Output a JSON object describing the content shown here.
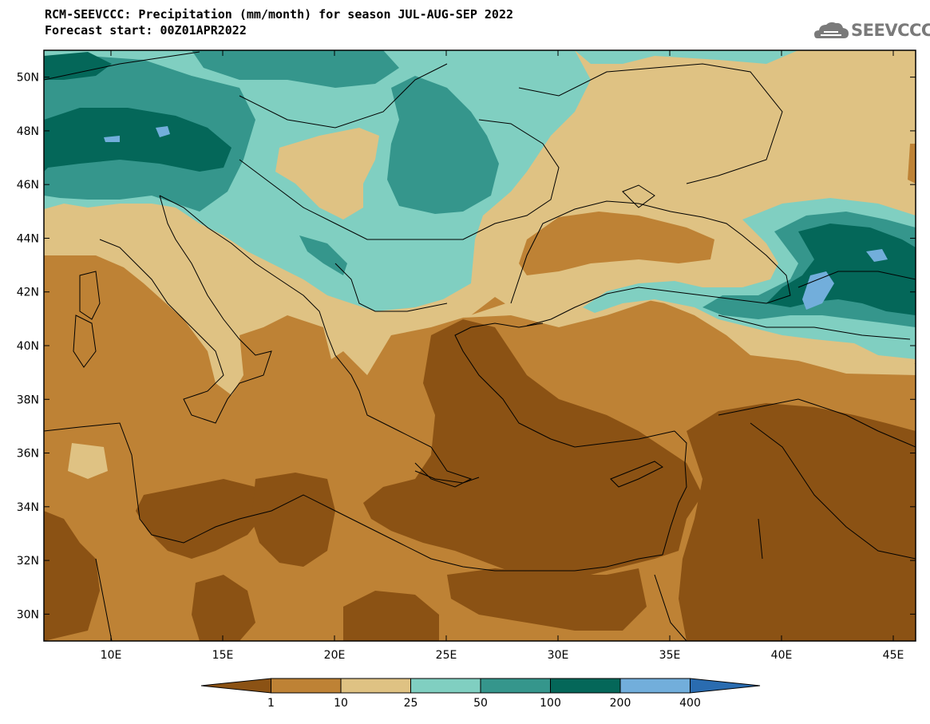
{
  "header": {
    "title_line1": "RCM-SEEVCCC: Precipitation (mm/month) for season JUL-AUG-SEP 2022",
    "title_line2": "Forecast start: 00Z01APR2022",
    "logo_text": "SEEVCCC",
    "logo_icon": "cloud-icon"
  },
  "map": {
    "lon_range": [
      7,
      46
    ],
    "lat_range": [
      29,
      51
    ],
    "x_ticks": [
      {
        "lon": 10,
        "label": "10E"
      },
      {
        "lon": 15,
        "label": "15E"
      },
      {
        "lon": 20,
        "label": "20E"
      },
      {
        "lon": 25,
        "label": "25E"
      },
      {
        "lon": 30,
        "label": "30E"
      },
      {
        "lon": 35,
        "label": "35E"
      },
      {
        "lon": 40,
        "label": "40E"
      },
      {
        "lon": 45,
        "label": "45E"
      }
    ],
    "y_ticks": [
      {
        "lat": 50,
        "label": "50N"
      },
      {
        "lat": 48,
        "label": "48N"
      },
      {
        "lat": 46,
        "label": "46N"
      },
      {
        "lat": 44,
        "label": "44N"
      },
      {
        "lat": 42,
        "label": "42N"
      },
      {
        "lat": 40,
        "label": "40N"
      },
      {
        "lat": 38,
        "label": "38N"
      },
      {
        "lat": 36,
        "label": "36N"
      },
      {
        "lat": 34,
        "label": "34N"
      },
      {
        "lat": 32,
        "label": "32N"
      },
      {
        "lat": 30,
        "label": "30N"
      }
    ]
  },
  "colorbar": {
    "colors": [
      "#8b5214",
      "#be8235",
      "#dfc283",
      "#80cfc1",
      "#35968c",
      "#046759",
      "#72aedb",
      "#2a6cb0"
    ],
    "labels": [
      "1",
      "10",
      "25",
      "50",
      "100",
      "200",
      "400"
    ]
  }
}
